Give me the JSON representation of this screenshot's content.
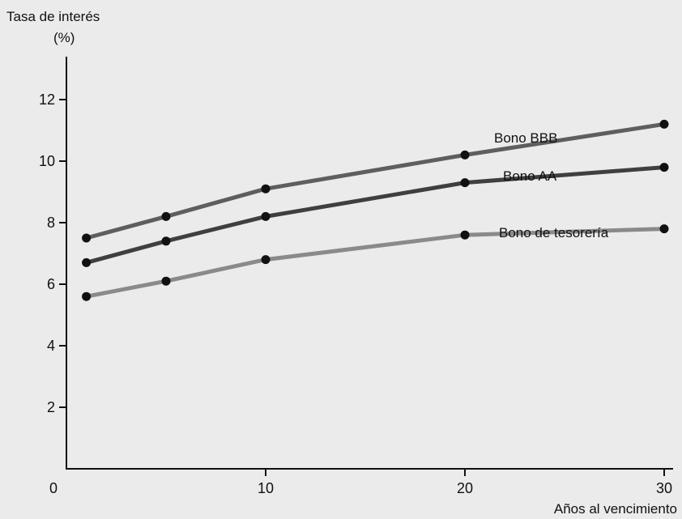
{
  "chart_data": {
    "type": "line",
    "ylabel_line1": "Tasa de interés",
    "ylabel_line2": "(%)",
    "xlabel": "Años al vencimiento",
    "xlim": [
      0,
      30
    ],
    "ylim": [
      0,
      14
    ],
    "x_ticks": [
      0,
      10,
      20,
      30
    ],
    "y_ticks": [
      2,
      4,
      6,
      8,
      10,
      12
    ],
    "grid": false,
    "series": [
      {
        "name": "Bono BBB",
        "color": "#5e5e5e",
        "x": [
          1,
          5,
          10,
          20,
          30
        ],
        "y": [
          7.5,
          8.2,
          9.1,
          10.2,
          11.2
        ]
      },
      {
        "name": "Bono AA",
        "color": "#3f3f3f",
        "x": [
          1,
          5,
          10,
          20,
          30
        ],
        "y": [
          6.7,
          7.4,
          8.2,
          9.3,
          9.8
        ]
      },
      {
        "name": "Bono de tesorería",
        "color": "#8a8a8a",
        "x": [
          1,
          5,
          10,
          20,
          30
        ],
        "y": [
          5.6,
          6.1,
          6.8,
          7.6,
          7.8
        ]
      }
    ]
  }
}
